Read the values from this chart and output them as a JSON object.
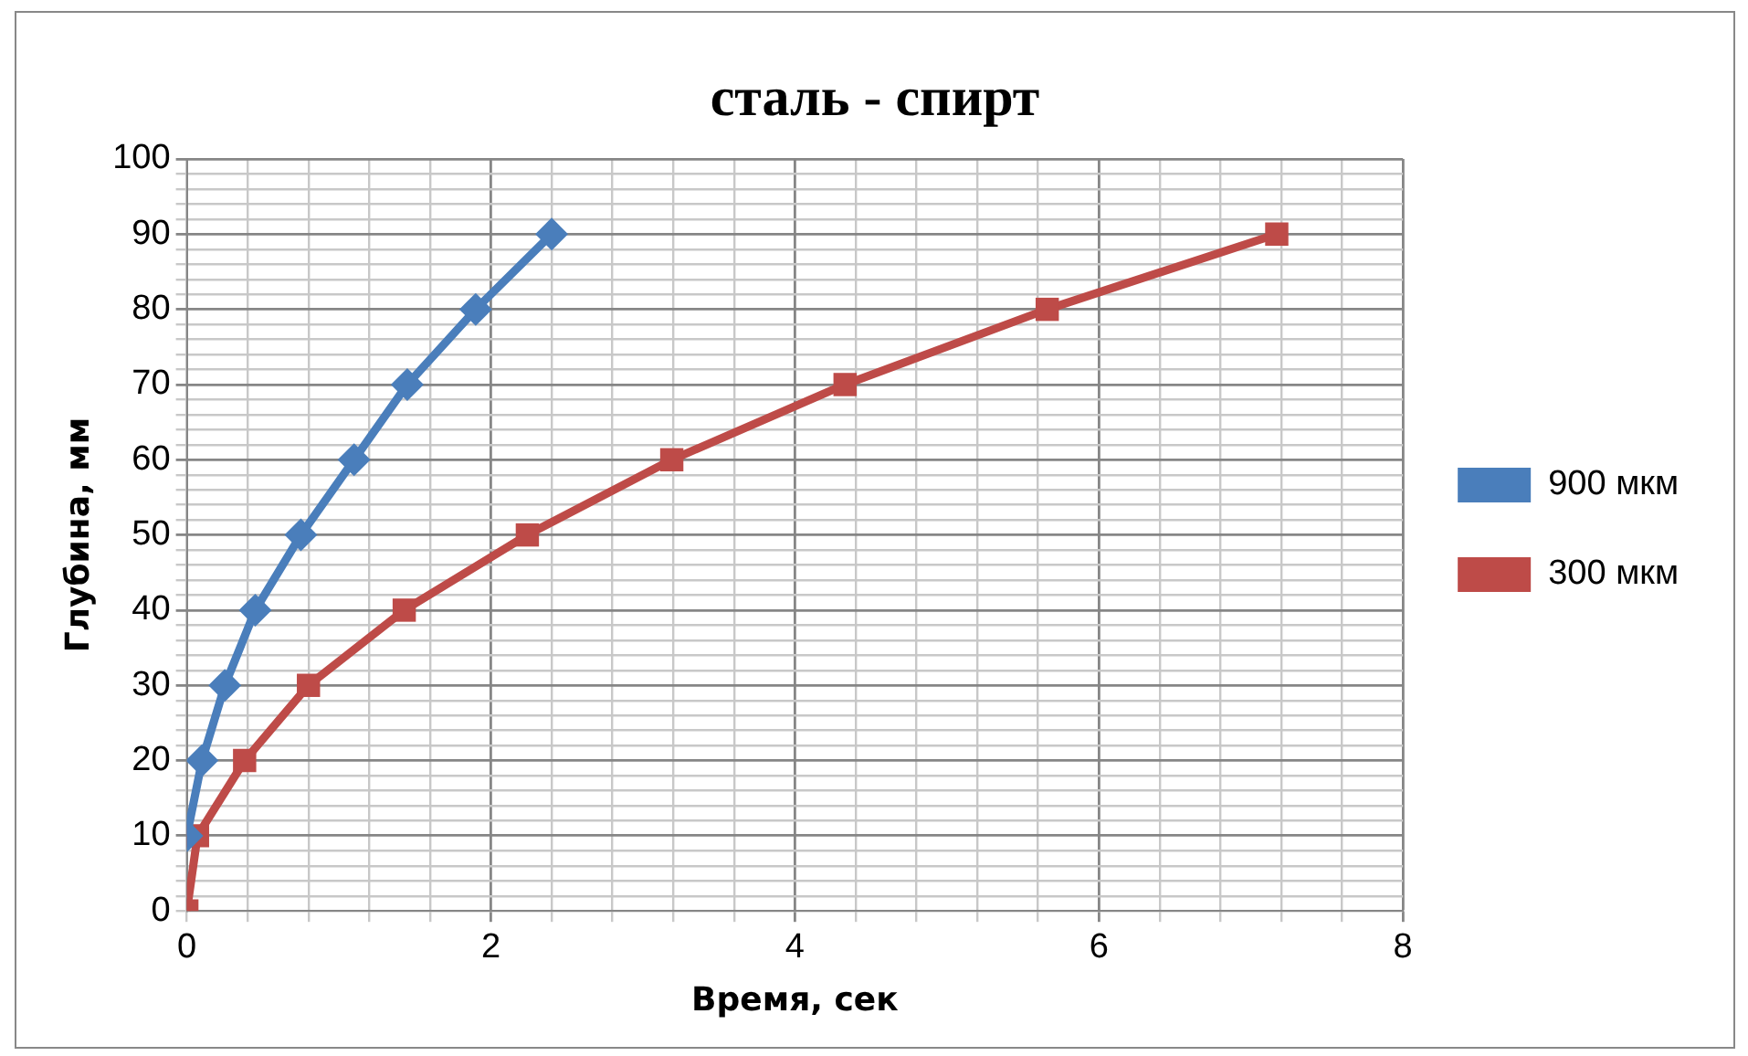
{
  "chart_data": {
    "type": "line",
    "title": "сталь - спирт",
    "xlabel": "Время, сек",
    "ylabel": "Глубина, мм",
    "xlim": [
      0,
      8
    ],
    "ylim": [
      0,
      100
    ],
    "xticks": [
      0,
      {
        "value": 0.4,
        "label": null
      },
      {
        "value": 0.8,
        "label": null
      },
      {
        "value": 1.2,
        "label": null
      },
      {
        "value": 1.6,
        "label": null
      },
      2,
      {
        "value": 2.4,
        "label": null
      },
      {
        "value": 2.8,
        "label": null
      },
      {
        "value": 3.2,
        "label": null
      },
      {
        "value": 3.6,
        "label": null
      },
      4,
      {
        "value": 4.4,
        "label": null
      },
      {
        "value": 4.8,
        "label": null
      },
      {
        "value": 5.2,
        "label": null
      },
      {
        "value": 5.6,
        "label": null
      },
      6,
      {
        "value": 6.4,
        "label": null
      },
      {
        "value": 6.8,
        "label": null
      },
      {
        "value": 7.2,
        "label": null
      },
      {
        "value": 7.6,
        "label": null
      },
      8
    ],
    "yticks": [
      0,
      {
        "value": 2,
        "label": null
      },
      {
        "value": 4,
        "label": null
      },
      {
        "value": 6,
        "label": null
      },
      {
        "value": 8,
        "label": null
      },
      10,
      {
        "value": 12,
        "label": null
      },
      {
        "value": 14,
        "label": null
      },
      {
        "value": 16,
        "label": null
      },
      {
        "value": 18,
        "label": null
      },
      20,
      {
        "value": 22,
        "label": null
      },
      {
        "value": 24,
        "label": null
      },
      {
        "value": 26,
        "label": null
      },
      {
        "value": 28,
        "label": null
      },
      30,
      {
        "value": 32,
        "label": null
      },
      {
        "value": 34,
        "label": null
      },
      {
        "value": 36,
        "label": null
      },
      {
        "value": 38,
        "label": null
      },
      40,
      {
        "value": 42,
        "label": null
      },
      {
        "value": 44,
        "label": null
      },
      {
        "value": 46,
        "label": null
      },
      {
        "value": 48,
        "label": null
      },
      50,
      {
        "value": 52,
        "label": null
      },
      {
        "value": 54,
        "label": null
      },
      {
        "value": 56,
        "label": null
      },
      {
        "value": 58,
        "label": null
      },
      60,
      {
        "value": 62,
        "label": null
      },
      {
        "value": 64,
        "label": null
      },
      {
        "value": 66,
        "label": null
      },
      {
        "value": 68,
        "label": null
      },
      70,
      {
        "value": 72,
        "label": null
      },
      {
        "value": 74,
        "label": null
      },
      {
        "value": 76,
        "label": null
      },
      {
        "value": 78,
        "label": null
      },
      80,
      {
        "value": 82,
        "label": null
      },
      {
        "value": 84,
        "label": null
      },
      {
        "value": 86,
        "label": null
      },
      {
        "value": 88,
        "label": null
      },
      90,
      {
        "value": 92,
        "label": null
      },
      {
        "value": 94,
        "label": null
      },
      {
        "value": 96,
        "label": null
      },
      {
        "value": 98,
        "label": null
      },
      100
    ],
    "grid": true,
    "legend": "right",
    "series": [
      {
        "name": "900 мкм",
        "color": "#4a7ebb",
        "marker": "diamond",
        "x": [
          0,
          0.1,
          0.25,
          0.45,
          0.75,
          1.1,
          1.45,
          1.9,
          2.4
        ],
        "values": [
          10,
          20,
          30,
          40,
          50,
          60,
          70,
          80,
          90
        ]
      },
      {
        "name": "300 мкм",
        "color": "#be4b48",
        "marker": "square",
        "x": [
          0,
          0.07,
          0.38,
          0.8,
          1.43,
          2.24,
          3.19,
          4.33,
          5.66,
          7.17
        ],
        "values": [
          0,
          10,
          20,
          30,
          40,
          50,
          60,
          70,
          80,
          90
        ]
      }
    ]
  }
}
